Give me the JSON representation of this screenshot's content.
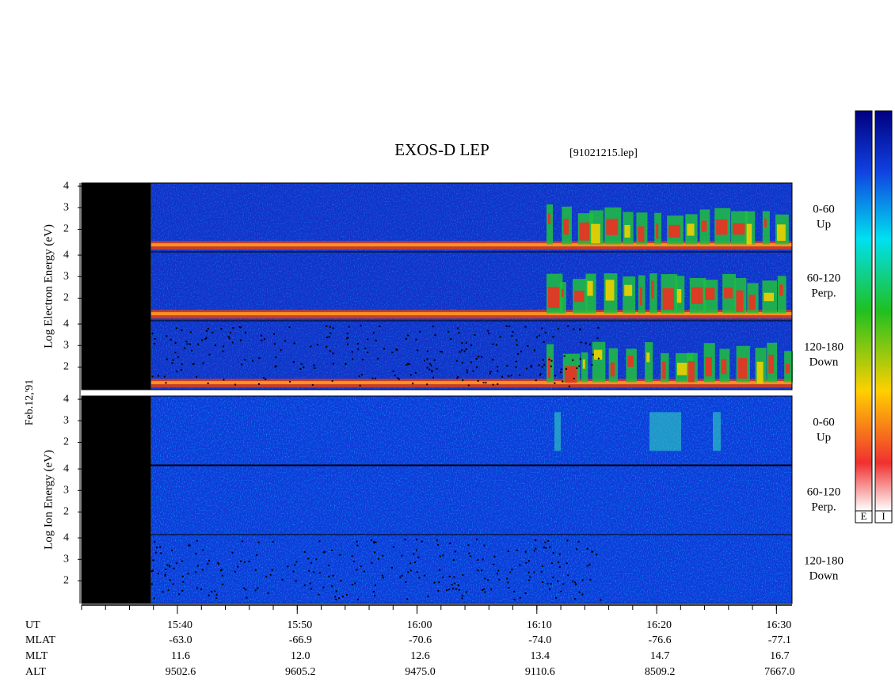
{
  "chart_data": {
    "type": "spectrogram",
    "title": "EXOS-D LEP",
    "file_label": "[91021215.lep]",
    "date_label": "Feb.12,'91",
    "xlabel": "UT",
    "xlim": [
      32,
      91.3
    ],
    "xticks": [
      {
        "value": 40,
        "label": "15:40"
      },
      {
        "value": 50,
        "label": "15:50"
      },
      {
        "value": 60,
        "label": "16:00"
      },
      {
        "value": 70,
        "label": "16:10"
      },
      {
        "value": 80,
        "label": "16:20"
      },
      {
        "value": 90,
        "label": "16:30"
      }
    ],
    "ylim": [
      0.95,
      4.15
    ],
    "yticks": [
      2,
      3,
      4
    ],
    "data_gap_end": 37.8,
    "groups": [
      {
        "ylabel": "Log Electron Energy (eV)",
        "panels": [
          {
            "angle": "0-60",
            "direction": "Up"
          },
          {
            "angle": "60-120",
            "direction": "Perp."
          },
          {
            "angle": "120-180",
            "direction": "Down"
          }
        ]
      },
      {
        "ylabel": "Log Ion Energy (eV)",
        "panels": [
          {
            "angle": "0-60",
            "direction": "Up"
          },
          {
            "angle": "60-120",
            "direction": "Perp."
          },
          {
            "angle": "120-180",
            "direction": "Down"
          }
        ]
      }
    ],
    "colorbars": [
      "E",
      "I"
    ],
    "ephemeris": [
      {
        "label": "MLAT",
        "values": [
          "-63.0",
          "-66.9",
          "-70.6",
          "-74.0",
          "-76.6",
          "-77.1"
        ]
      },
      {
        "label": "MLT",
        "values": [
          "11.6",
          "12.0",
          "12.6",
          "13.4",
          "14.7",
          "16.7"
        ]
      },
      {
        "label": "ALT",
        "values": [
          "9502.6",
          "9605.2",
          "9475.0",
          "9110.6",
          "8509.2",
          "7667.0"
        ]
      }
    ]
  }
}
